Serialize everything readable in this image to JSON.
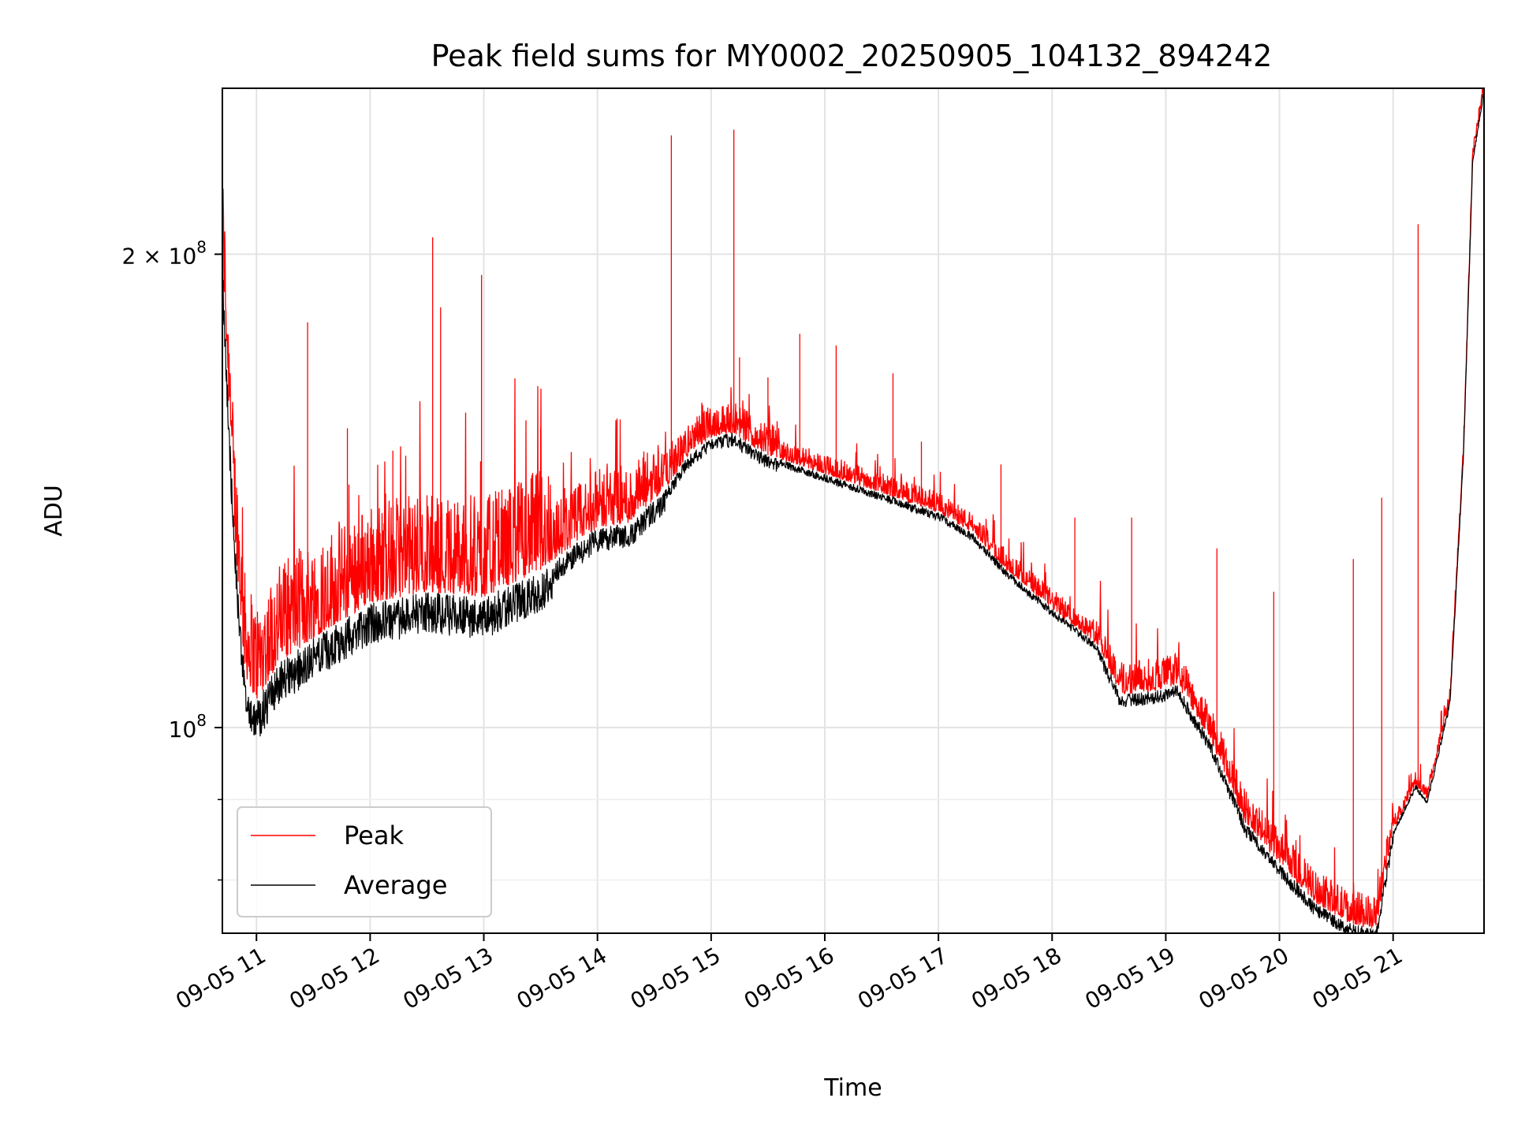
{
  "chart_data": {
    "type": "line",
    "title": "Peak field sums for MY0002_20250905_104132_894242",
    "xlabel": "Time",
    "ylabel": "ADU",
    "yscale": "log",
    "grid": true,
    "legend_position": "lower-left",
    "xlim": [
      10.7,
      21.8
    ],
    "ylim": [
      74000000,
      255000000
    ],
    "x_ticks": [
      {
        "value": 11,
        "label": "09-05 11"
      },
      {
        "value": 12,
        "label": "09-05 12"
      },
      {
        "value": 13,
        "label": "09-05 13"
      },
      {
        "value": 14,
        "label": "09-05 14"
      },
      {
        "value": 15,
        "label": "09-05 15"
      },
      {
        "value": 16,
        "label": "09-05 16"
      },
      {
        "value": 17,
        "label": "09-05 17"
      },
      {
        "value": 18,
        "label": "09-05 18"
      },
      {
        "value": 19,
        "label": "09-05 19"
      },
      {
        "value": 20,
        "label": "09-05 20"
      },
      {
        "value": 21,
        "label": "09-05 21"
      }
    ],
    "y_ticks": [
      {
        "value": 100000000,
        "base": "10",
        "exp": "8",
        "label": "10^8"
      },
      {
        "value": 200000000,
        "mantissa": "2 × ",
        "base": "10",
        "exp": "8",
        "label": "2 × 10^8"
      }
    ],
    "y_minor_ticks": [
      80000000,
      90000000
    ],
    "baseline": {
      "x": [
        10.7,
        10.8,
        10.9,
        11.0,
        11.2,
        11.5,
        12.0,
        12.5,
        13.0,
        13.5,
        14.0,
        14.3,
        14.6,
        14.8,
        15.0,
        15.2,
        15.3,
        15.5,
        16.0,
        16.5,
        17.0,
        17.3,
        17.6,
        18.0,
        18.4,
        18.6,
        18.9,
        19.1,
        19.4,
        19.7,
        20.0,
        20.3,
        20.6,
        20.85,
        21.0,
        21.2,
        21.3,
        21.5,
        21.62,
        21.7,
        21.8
      ],
      "y": [
        200000000,
        135000000,
        108000000,
        104000000,
        110000000,
        114000000,
        120000000,
        122000000,
        121000000,
        126000000,
        134000000,
        135000000,
        142000000,
        149000000,
        153000000,
        154000000,
        152000000,
        149000000,
        145000000,
        141000000,
        137000000,
        133000000,
        126000000,
        119000000,
        113000000,
        105000000,
        105500000,
        106500000,
        98000000,
        87000000,
        82000000,
        77500000,
        75200000,
        74400000,
        86000000,
        92000000,
        90000000,
        104000000,
        150000000,
        230000000,
        255000000
      ]
    },
    "series": [
      {
        "name": "Peak",
        "color": "#ff0000",
        "spikes": [
          [
            11.45,
            181000000
          ],
          [
            12.55,
            205000000
          ],
          [
            12.62,
            185000000
          ],
          [
            12.98,
            194000000
          ],
          [
            14.65,
            238000000
          ],
          [
            15.2,
            240000000
          ],
          [
            15.25,
            172000000
          ],
          [
            15.78,
            178000000
          ],
          [
            16.1,
            175000000
          ],
          [
            16.6,
            168000000
          ],
          [
            16.85,
            152000000
          ],
          [
            17.55,
            147000000
          ],
          [
            18.2,
            136000000
          ],
          [
            18.7,
            136000000
          ],
          [
            19.45,
            130000000
          ],
          [
            19.95,
            122000000
          ],
          [
            20.65,
            128000000
          ],
          [
            20.9,
            140000000
          ],
          [
            21.22,
            209000000
          ],
          [
            12.2,
            150000000
          ],
          [
            13.5,
            155000000
          ],
          [
            14.2,
            157000000
          ],
          [
            11.8,
            155000000
          ],
          [
            15.5,
            167000000
          ]
        ]
      },
      {
        "name": "Average",
        "color": "#000000"
      }
    ]
  }
}
